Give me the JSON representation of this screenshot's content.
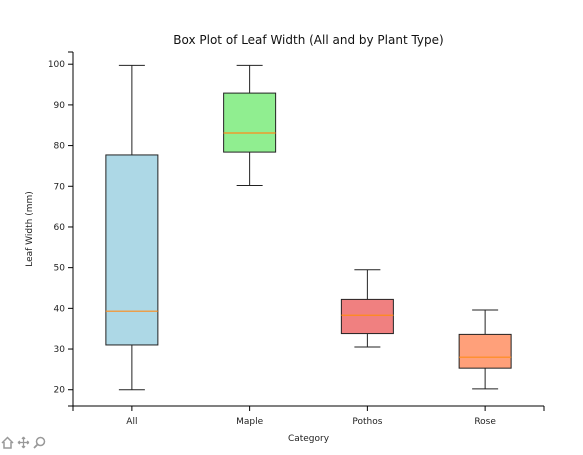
{
  "chart_data": {
    "type": "box",
    "title": "Box Plot of Leaf Width (All and by Plant Type)",
    "xlabel": "Category",
    "ylabel": "Leaf Width (mm)",
    "ylim": [
      16,
      103
    ],
    "yticks": [
      20,
      30,
      40,
      50,
      60,
      70,
      80,
      90,
      100
    ],
    "grid": false,
    "categories": [
      "All",
      "Maple",
      "Pothos",
      "Rose"
    ],
    "boxes": [
      {
        "category": "All",
        "whisker_low": 20,
        "q1": 31,
        "median": 39.3,
        "q3": 77.7,
        "whisker_high": 99.7,
        "color": "#add8e6"
      },
      {
        "category": "Maple",
        "whisker_low": 70.2,
        "q1": 78.4,
        "median": 83.1,
        "q3": 92.9,
        "whisker_high": 99.7,
        "color": "#90ee90"
      },
      {
        "category": "Pothos",
        "whisker_low": 30.5,
        "q1": 33.8,
        "median": 38.3,
        "q3": 42.2,
        "whisker_high": 49.5,
        "color": "#f08080"
      },
      {
        "category": "Rose",
        "whisker_low": 20.2,
        "q1": 25.3,
        "median": 28.0,
        "q3": 33.6,
        "whisker_high": 39.6,
        "color": "#ffa07a"
      }
    ],
    "median_color": "#ff8c1a",
    "edge_color": "#222222"
  },
  "toolbar": {
    "icons": [
      "home-icon",
      "pan-icon",
      "zoom-icon"
    ]
  }
}
